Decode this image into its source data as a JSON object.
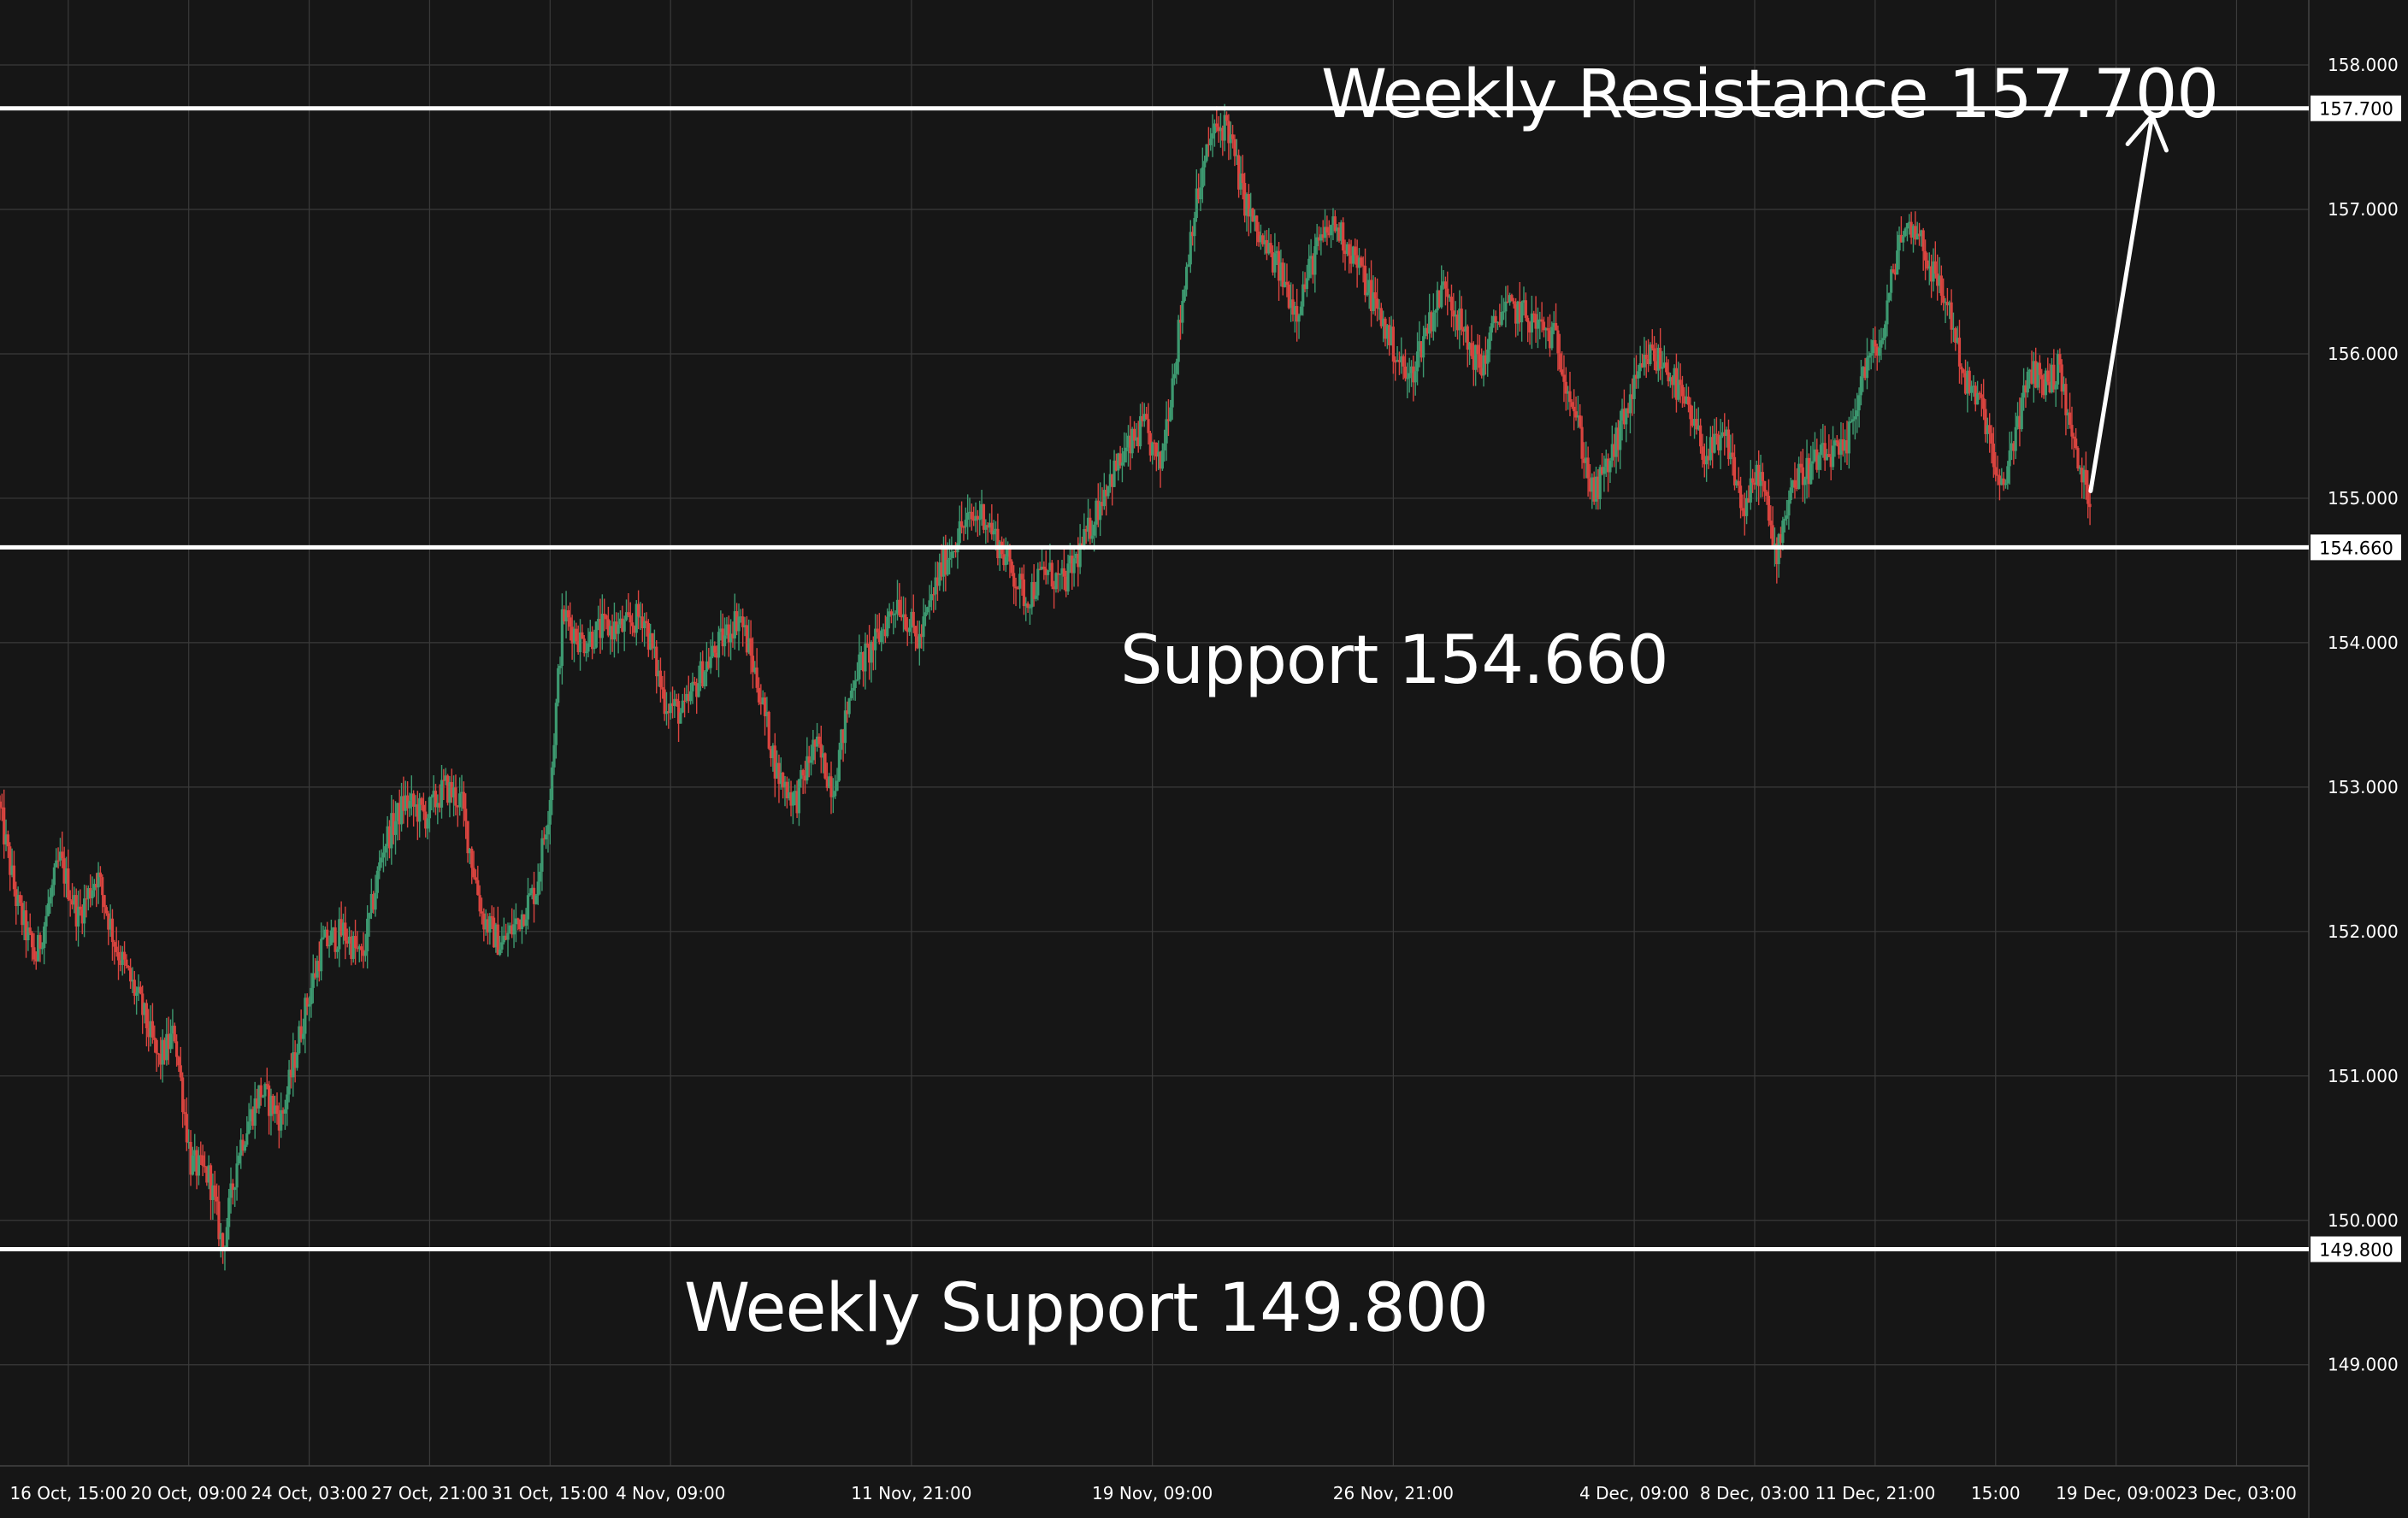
{
  "chart_data": {
    "type": "candlestick",
    "title": "",
    "ylim": [
      148.3,
      158.45
    ],
    "xlim": [
      "2024-10-14T12:00",
      "2024-12-25T09:00"
    ],
    "grid": true,
    "y_ticks": [
      "158.000",
      "157.000",
      "156.000",
      "155.000",
      "154.000",
      "153.000",
      "152.000",
      "151.000",
      "150.000",
      "149.000"
    ],
    "y_tick_values": [
      158,
      157,
      156,
      155,
      154,
      153,
      152,
      151,
      150,
      149
    ],
    "x_ticks": [
      {
        "label": "16 Oct, 15:00",
        "t": "2024-10-16T15:00"
      },
      {
        "label": "20 Oct, 09:00",
        "t": "2024-10-20T09:00"
      },
      {
        "label": "24 Oct, 03:00",
        "t": "2024-10-24T03:00"
      },
      {
        "label": "27 Oct, 21:00",
        "t": "2024-10-27T21:00"
      },
      {
        "label": "31 Oct, 15:00",
        "t": "2024-10-31T15:00"
      },
      {
        "label": "4 Nov, 09:00",
        "t": "2024-11-04T09:00"
      },
      {
        "label": "11 Nov, 21:00",
        "t": "2024-11-11T21:00"
      },
      {
        "label": "19 Nov, 09:00",
        "t": "2024-11-19T09:00"
      },
      {
        "label": "26 Nov, 21:00",
        "t": "2024-11-26T21:00"
      },
      {
        "label": "4 Dec, 09:00",
        "t": "2024-12-04T09:00"
      },
      {
        "label": "8 Dec, 03:00",
        "t": "2024-12-08T03:00"
      },
      {
        "label": "11 Dec, 21:00",
        "t": "2024-12-11T21:00"
      },
      {
        "label": "15:00",
        "t": "2024-12-15T15:00"
      },
      {
        "label": "19 Dec, 09:00",
        "t": "2024-12-19T09:00"
      },
      {
        "label": "23 Dec, 03:00",
        "t": "2024-12-23T03:00"
      }
    ],
    "price_path": [
      [
        "2024-10-14T12:00",
        152.9
      ],
      [
        "2024-10-15T02:00",
        152.2
      ],
      [
        "2024-10-15T16:00",
        151.8
      ],
      [
        "2024-10-16T10:00",
        152.5
      ],
      [
        "2024-10-17T00:00",
        152.1
      ],
      [
        "2024-10-17T14:00",
        152.4
      ],
      [
        "2024-10-18T04:00",
        151.9
      ],
      [
        "2024-10-18T22:00",
        151.5
      ],
      [
        "2024-10-19T12:00",
        151.1
      ],
      [
        "2024-10-20T00:00",
        151.3
      ],
      [
        "2024-10-20T12:00",
        150.4
      ],
      [
        "2024-10-21T02:00",
        150.3
      ],
      [
        "2024-10-21T12:00",
        149.8
      ],
      [
        "2024-10-22T00:00",
        150.5
      ],
      [
        "2024-10-22T16:00",
        150.9
      ],
      [
        "2024-10-23T08:00",
        150.7
      ],
      [
        "2024-10-24T00:00",
        151.4
      ],
      [
        "2024-10-24T14:00",
        151.9
      ],
      [
        "2024-10-25T06:00",
        152.0
      ],
      [
        "2024-10-25T20:00",
        151.8
      ],
      [
        "2024-10-26T12:00",
        152.6
      ],
      [
        "2024-10-27T04:00",
        152.9
      ],
      [
        "2024-10-27T20:00",
        152.8
      ],
      [
        "2024-10-28T10:00",
        153.0
      ],
      [
        "2024-10-28T22:00",
        152.9
      ],
      [
        "2024-10-29T14:00",
        152.1
      ],
      [
        "2024-10-30T04:00",
        151.9
      ],
      [
        "2024-10-30T18:00",
        152.1
      ],
      [
        "2024-10-31T06:00",
        152.3
      ],
      [
        "2024-10-31T16:00",
        152.9
      ],
      [
        "2024-11-01T02:00",
        154.2
      ],
      [
        "2024-11-01T16:00",
        154.0
      ],
      [
        "2024-11-02T08:00",
        154.1
      ],
      [
        "2024-11-03T00:00",
        154.1
      ],
      [
        "2024-11-03T14:00",
        154.2
      ],
      [
        "2024-11-04T06:00",
        153.6
      ],
      [
        "2024-11-04T20:00",
        153.5
      ],
      [
        "2024-11-05T10:00",
        153.8
      ],
      [
        "2024-11-06T00:00",
        154.0
      ],
      [
        "2024-11-06T14:00",
        154.2
      ],
      [
        "2024-11-07T04:00",
        153.7
      ],
      [
        "2024-11-07T18:00",
        153.1
      ],
      [
        "2024-11-08T08:00",
        152.9
      ],
      [
        "2024-11-08T22:00",
        153.3
      ],
      [
        "2024-11-09T12:00",
        153.0
      ],
      [
        "2024-11-10T04:00",
        153.8
      ],
      [
        "2024-11-10T20:00",
        154.0
      ],
      [
        "2024-11-11T12:00",
        154.3
      ],
      [
        "2024-11-12T04:00",
        154.0
      ],
      [
        "2024-11-12T20:00",
        154.5
      ],
      [
        "2024-11-13T12:00",
        154.8
      ],
      [
        "2024-11-14T04:00",
        154.9
      ],
      [
        "2024-11-14T20:00",
        154.6
      ],
      [
        "2024-11-15T12:00",
        154.3
      ],
      [
        "2024-11-16T02:00",
        154.5
      ],
      [
        "2024-11-16T16:00",
        154.4
      ],
      [
        "2024-11-17T08:00",
        154.7
      ],
      [
        "2024-11-18T00:00",
        155.1
      ],
      [
        "2024-11-18T14:00",
        155.3
      ],
      [
        "2024-11-19T04:00",
        155.5
      ],
      [
        "2024-11-19T16:00",
        155.2
      ],
      [
        "2024-11-20T04:00",
        156.0
      ],
      [
        "2024-11-20T16:00",
        156.9
      ],
      [
        "2024-11-21T06:00",
        157.5
      ],
      [
        "2024-11-21T18:00",
        157.6
      ],
      [
        "2024-11-22T06:00",
        157.1
      ],
      [
        "2024-11-22T18:00",
        156.8
      ],
      [
        "2024-11-23T08:00",
        156.6
      ],
      [
        "2024-11-23T22:00",
        156.3
      ],
      [
        "2024-11-24T12:00",
        156.7
      ],
      [
        "2024-11-25T02:00",
        156.9
      ],
      [
        "2024-11-25T16:00",
        156.7
      ],
      [
        "2024-11-26T06:00",
        156.4
      ],
      [
        "2024-11-26T20:00",
        156.1
      ],
      [
        "2024-11-27T10:00",
        155.8
      ],
      [
        "2024-11-28T00:00",
        156.2
      ],
      [
        "2024-11-28T14:00",
        156.5
      ],
      [
        "2024-11-29T04:00",
        156.1
      ],
      [
        "2024-11-29T16:00",
        155.9
      ],
      [
        "2024-11-30T06:00",
        156.3
      ],
      [
        "2024-11-30T20:00",
        156.3
      ],
      [
        "2024-12-01T10:00",
        156.2
      ],
      [
        "2024-12-02T00:00",
        156.1
      ],
      [
        "2024-12-02T14:00",
        155.6
      ],
      [
        "2024-12-03T04:00",
        155.0
      ],
      [
        "2024-12-03T18:00",
        155.3
      ],
      [
        "2024-12-04T08:00",
        155.7
      ],
      [
        "2024-12-04T22:00",
        156.0
      ],
      [
        "2024-12-05T12:00",
        155.9
      ],
      [
        "2024-12-06T02:00",
        155.6
      ],
      [
        "2024-12-06T16:00",
        155.3
      ],
      [
        "2024-12-07T08:00",
        155.4
      ],
      [
        "2024-12-07T20:00",
        154.9
      ],
      [
        "2024-12-08T08:00",
        155.2
      ],
      [
        "2024-12-08T20:00",
        154.6
      ],
      [
        "2024-12-09T08:00",
        155.1
      ],
      [
        "2024-12-09T20:00",
        155.2
      ],
      [
        "2024-12-10T10:00",
        155.3
      ],
      [
        "2024-12-11T00:00",
        155.3
      ],
      [
        "2024-12-11T14:00",
        155.9
      ],
      [
        "2024-12-12T04:00",
        156.1
      ],
      [
        "2024-12-12T16:00",
        156.8
      ],
      [
        "2024-12-13T04:00",
        156.9
      ],
      [
        "2024-12-13T16:00",
        156.6
      ],
      [
        "2024-12-14T06:00",
        156.3
      ],
      [
        "2024-12-14T18:00",
        155.8
      ],
      [
        "2024-12-15T08:00",
        155.6
      ],
      [
        "2024-12-15T20:00",
        155.0
      ],
      [
        "2024-12-16T08:00",
        155.5
      ],
      [
        "2024-12-16T20:00",
        155.9
      ],
      [
        "2024-12-17T06:00",
        155.8
      ],
      [
        "2024-12-17T16:00",
        155.9
      ],
      [
        "2024-12-18T04:00",
        155.3
      ],
      [
        "2024-12-18T14:00",
        155.0
      ]
    ],
    "horizontal_levels": [
      {
        "label": "Weekly Resistance 157.700",
        "value": 157.7,
        "tag": "157.700"
      },
      {
        "label": "Support 154.660",
        "value": 154.66,
        "tag": "154.660"
      },
      {
        "label": "Weekly Support 149.800",
        "value": 149.8,
        "tag": "149.800"
      }
    ],
    "projection_arrow": {
      "from": [
        "2024-12-18T14:00",
        155.05
      ],
      "to": [
        "2024-12-20T12:00",
        157.65
      ]
    },
    "colors": {
      "background": "#161616",
      "grid": "#3a3a3a",
      "up_candle": "#3d9970",
      "down_candle": "#d9443f",
      "level_line": "#ffffff",
      "annotation_text": "#ffffff",
      "tag_background": "#ffffff",
      "tag_text": "#000000"
    }
  }
}
